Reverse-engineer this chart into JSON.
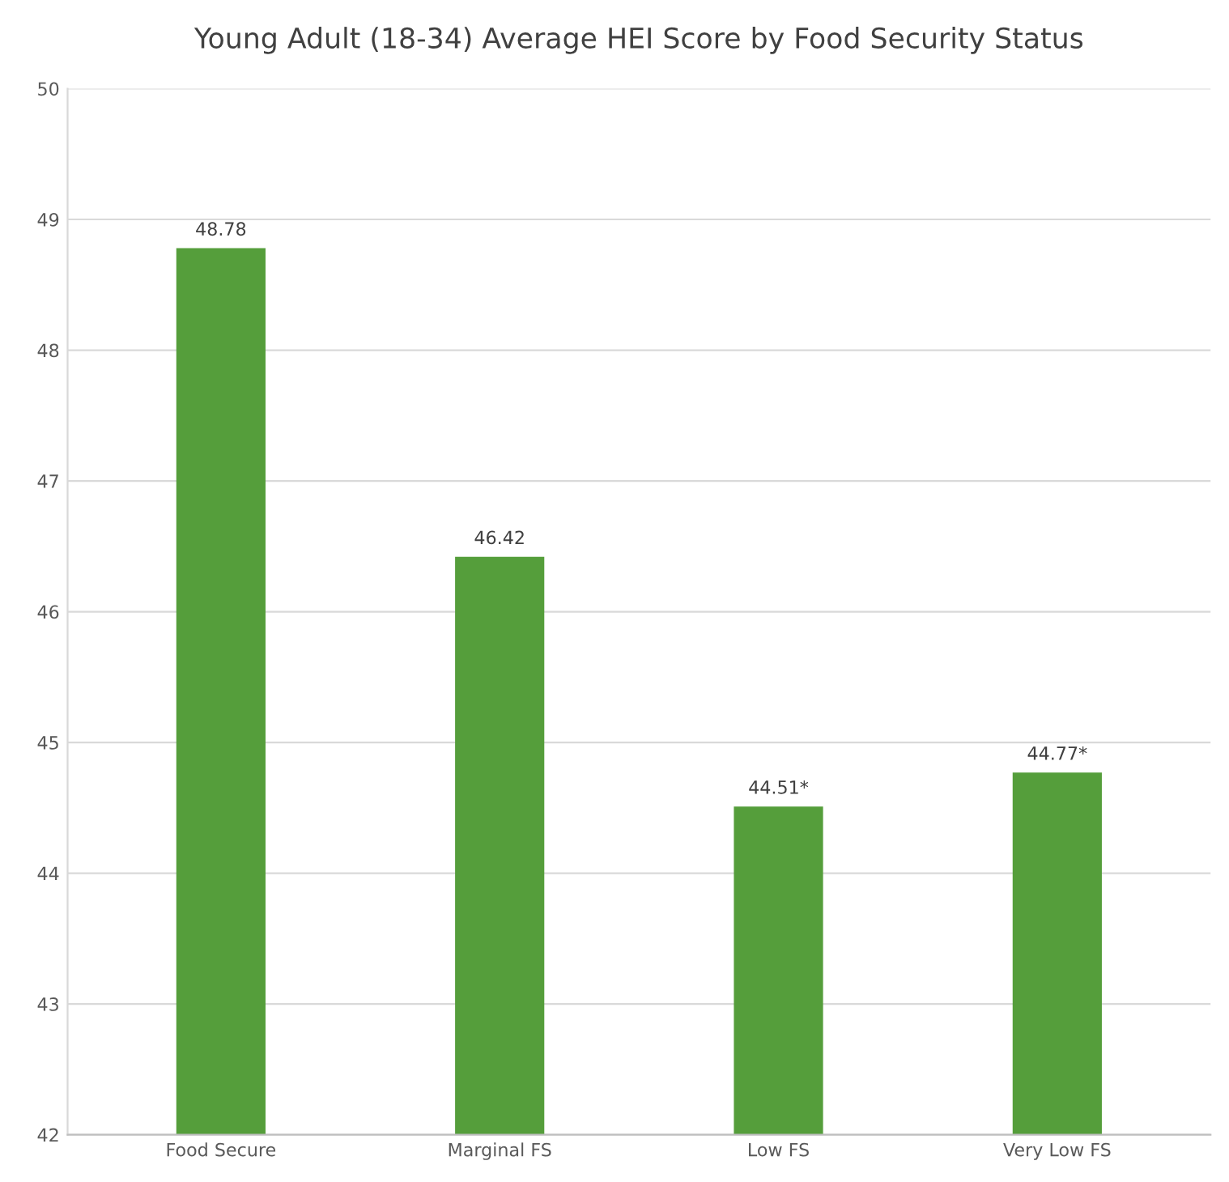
{
  "chart_data": {
    "type": "bar",
    "title": "Young Adult (18-34) Average HEI Score by Food Security Status",
    "categories": [
      "Food Secure",
      "Marginal FS",
      "Low FS",
      "Very Low FS"
    ],
    "values": [
      48.78,
      46.42,
      44.51,
      44.77
    ],
    "value_labels": [
      "48.78",
      "46.42",
      "44.51*",
      "44.77*"
    ],
    "color": "#559e3b",
    "ylim": [
      42,
      50
    ],
    "yticks": [
      42,
      43,
      44,
      45,
      46,
      47,
      48,
      49,
      50
    ],
    "grid": "y",
    "legend": false
  }
}
